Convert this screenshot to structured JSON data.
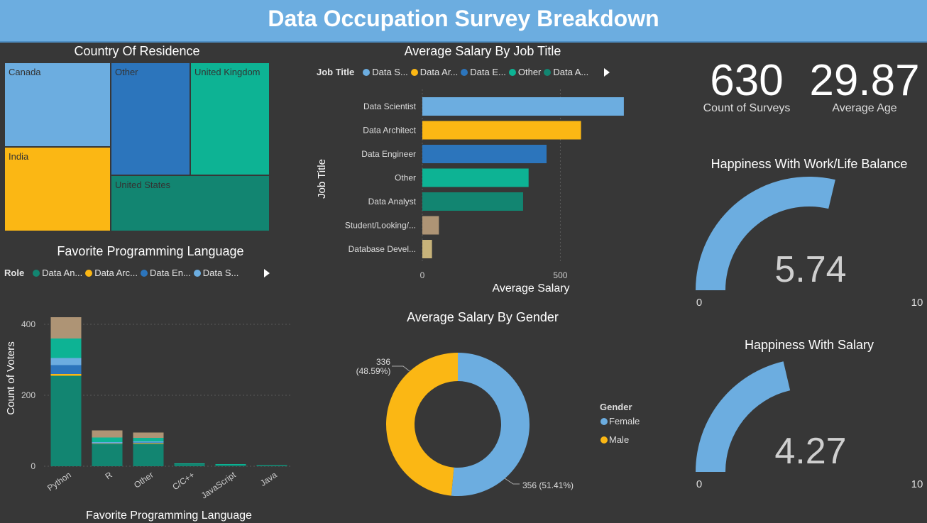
{
  "header": {
    "title": "Data Occupation Survey Breakdown"
  },
  "colors": {
    "light_blue": "#6cade0",
    "yellow": "#fbb714",
    "blue": "#2c75bc",
    "teal": "#0db394",
    "dark_teal": "#128571",
    "tan": "#ae9475",
    "sand": "#c7b37a"
  },
  "treemap": {
    "title": "Country Of Residence",
    "items": [
      {
        "label": "Canada",
        "color": "#6cade0"
      },
      {
        "label": "India",
        "color": "#fbb714"
      },
      {
        "label": "Other",
        "color": "#2c75bc"
      },
      {
        "label": "United Kingdom",
        "color": "#0db394"
      },
      {
        "label": "United States",
        "color": "#128571"
      }
    ]
  },
  "salary_by_job": {
    "title": "Average Salary By Job Title",
    "legend_label": "Job Title",
    "legend_items": [
      {
        "label": "Data S...",
        "color": "#6cade0"
      },
      {
        "label": "Data Ar...",
        "color": "#fbb714"
      },
      {
        "label": "Data E...",
        "color": "#2c75bc"
      },
      {
        "label": "Other",
        "color": "#0db394"
      },
      {
        "label": "Data A...",
        "color": "#128571"
      }
    ]
  },
  "lang_chart": {
    "title": "Favorite Programming Language",
    "legend_label": "Role",
    "legend_items": [
      {
        "label": "Data An...",
        "color": "#128571"
      },
      {
        "label": "Data Arc...",
        "color": "#fbb714"
      },
      {
        "label": "Data En...",
        "color": "#2c75bc"
      },
      {
        "label": "Data S...",
        "color": "#6cade0"
      }
    ]
  },
  "salary_by_gender": {
    "title": "Average Salary By Gender",
    "legend_label": "Gender"
  },
  "cards": {
    "surveys": {
      "value": "630",
      "label": "Count of Surveys"
    },
    "age": {
      "value": "29.87",
      "label": "Average Age"
    }
  },
  "gauge_worklife": {
    "title": "Happiness With Work/Life Balance",
    "value": 5.74,
    "value_text": "5.74",
    "min_label": "0",
    "max_label": "10",
    "min": 0,
    "max": 10
  },
  "gauge_salary": {
    "title": "Happiness With Salary",
    "value": 4.27,
    "value_text": "4.27",
    "min_label": "0",
    "max_label": "10",
    "min": 0,
    "max": 10
  },
  "chart_data": [
    {
      "type": "bar",
      "orientation": "horizontal",
      "title": "Average Salary By Job Title",
      "xlabel": "Average Salary",
      "ylabel": "Job Title",
      "xlim": [
        0,
        720
      ],
      "ticks": [
        0,
        500
      ],
      "tick_labels": [
        "0",
        "500"
      ],
      "categories": [
        "Data Scientist",
        "Data Architect",
        "Data Engineer",
        "Other",
        "Data Analyst",
        "Student/Looking/...",
        "Database Devel..."
      ],
      "values": [
        730,
        575,
        450,
        385,
        365,
        60,
        35
      ],
      "colors": [
        "#6cade0",
        "#fbb714",
        "#2c75bc",
        "#0db394",
        "#128571",
        "#ae9475",
        "#c7b37a"
      ]
    },
    {
      "type": "bar",
      "stacked": true,
      "title": "Favorite Programming Language",
      "xlabel": "Favorite Programming Language",
      "ylabel": "Count of Voters",
      "ylim": [
        0,
        440
      ],
      "ticks": [
        0,
        200,
        400
      ],
      "tick_labels": [
        "0",
        "200",
        "400"
      ],
      "categories": [
        "Python",
        "R",
        "Other",
        "C/C++",
        "JavaScript",
        "Java"
      ],
      "series": [
        {
          "color": "#128571",
          "values": [
            255,
            63,
            63,
            6,
            4,
            2
          ]
        },
        {
          "color": "#fbb714",
          "values": [
            5,
            1,
            2,
            0,
            0,
            0
          ]
        },
        {
          "color": "#2c75bc",
          "values": [
            25,
            1,
            2,
            0,
            0,
            0
          ]
        },
        {
          "color": "#6cade0",
          "values": [
            20,
            3,
            3,
            0,
            0,
            0
          ]
        },
        {
          "color": "#0db394",
          "values": [
            55,
            13,
            10,
            2,
            2,
            1
          ]
        },
        {
          "color": "#ae9475",
          "values": [
            60,
            20,
            15,
            0,
            0,
            0
          ]
        }
      ]
    },
    {
      "type": "pie",
      "donut": true,
      "title": "Average Salary By Gender",
      "legend_title": "Gender",
      "slices": [
        {
          "label": "Female",
          "value": 356,
          "pct": 51.41,
          "color": "#6cade0",
          "data_label": "356 (51.41%)"
        },
        {
          "label": "Male",
          "value": 336,
          "pct": 48.59,
          "color": "#fbb714",
          "data_label_value": "336",
          "data_label_pct": "(48.59%)"
        }
      ]
    }
  ]
}
